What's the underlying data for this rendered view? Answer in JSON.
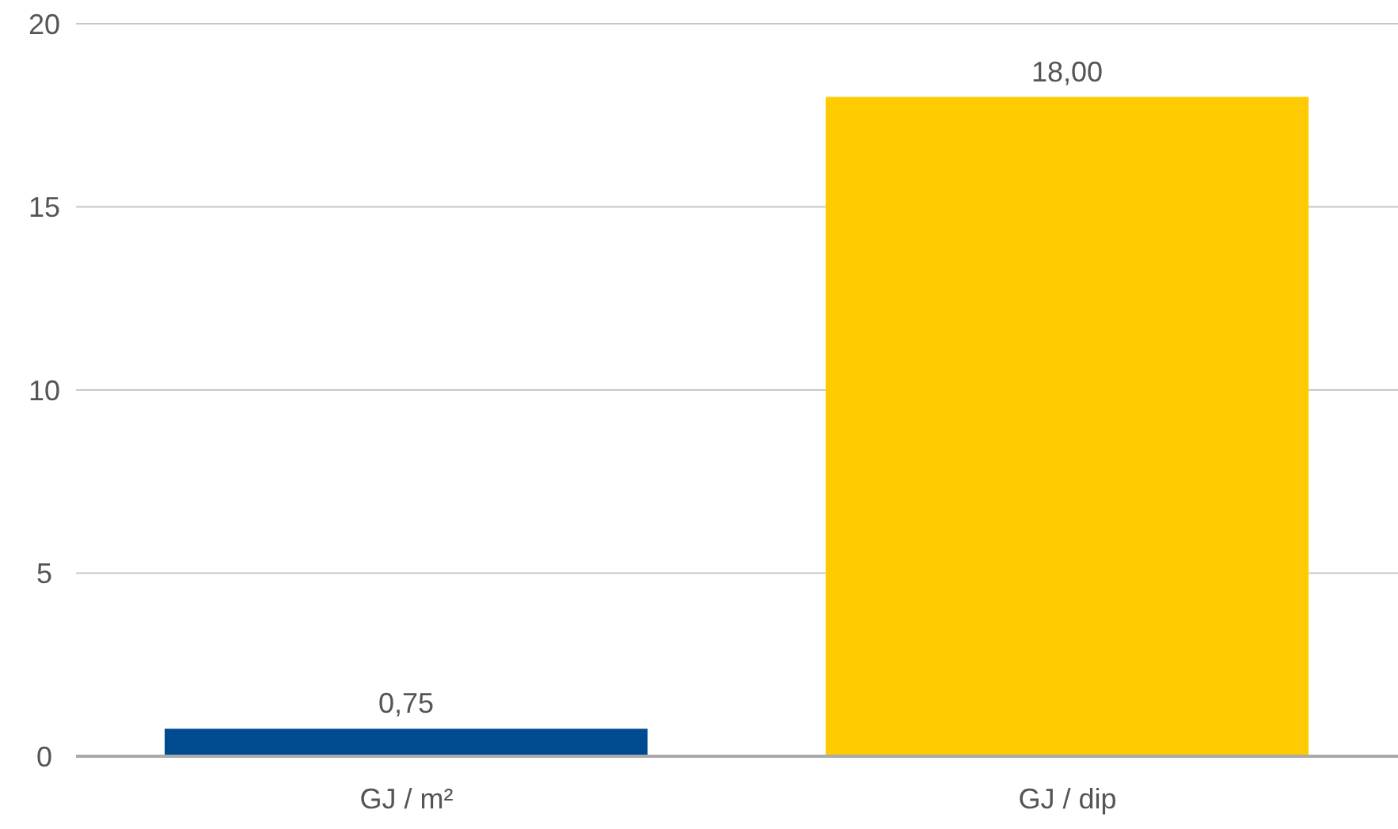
{
  "chart_data": {
    "type": "bar",
    "categories": [
      "GJ / m²",
      "GJ / dip"
    ],
    "values": [
      0.75,
      18
    ],
    "colors": [
      "#004a8f",
      "#fecb00"
    ],
    "value_labels": [
      "0,75",
      "18,00"
    ],
    "ylim": [
      0,
      20
    ],
    "yticks": [
      0,
      5,
      10,
      15,
      20
    ],
    "grid": "y"
  }
}
